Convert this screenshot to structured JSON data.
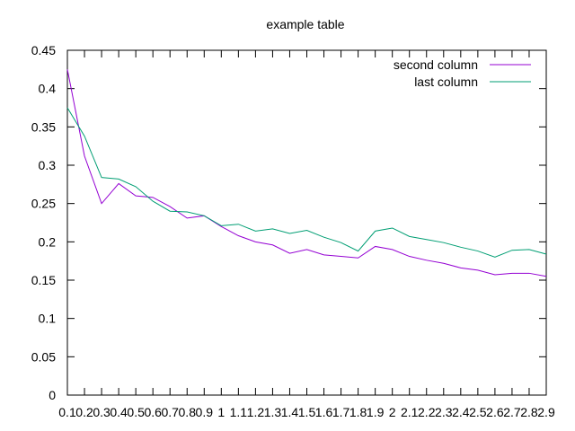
{
  "chart_data": {
    "type": "line",
    "title": "example table",
    "xlabel": "",
    "ylabel": "",
    "x": [
      0.1,
      0.2,
      0.3,
      0.4,
      0.5,
      0.6,
      0.7,
      0.8,
      0.9,
      1,
      1.1,
      1.2,
      1.3,
      1.4,
      1.5,
      1.6,
      1.7,
      1.8,
      1.9,
      2,
      2.1,
      2.2,
      2.3,
      2.4,
      2.5,
      2.6,
      2.7,
      2.8,
      2.9
    ],
    "x_tick_labels": [
      "0.1",
      "0.2",
      "0.3",
      "0.4",
      "0.5",
      "0.6",
      "0.7",
      "0.8",
      "0.9",
      "1",
      "1.1",
      "1.2",
      "1.3",
      "1.4",
      "1.5",
      "1.6",
      "1.7",
      "1.8",
      "1.9",
      "2",
      "2.1",
      "2.2",
      "2.3",
      "2.4",
      "2.5",
      "2.6",
      "2.7",
      "2.8",
      "2.9"
    ],
    "xlim": [
      0.1,
      2.9
    ],
    "ylim": [
      0,
      0.45
    ],
    "y_ticks": [
      0,
      0.05,
      0.1,
      0.15,
      0.2,
      0.25,
      0.3,
      0.35,
      0.4,
      0.45
    ],
    "y_tick_labels": [
      "0",
      "0.05",
      "0.1",
      "0.15",
      "0.2",
      "0.25",
      "0.3",
      "0.35",
      "0.4",
      "0.45"
    ],
    "grid": false,
    "legend": "top-right",
    "series": [
      {
        "name": "second column",
        "color": "#9400d3",
        "values": [
          0.425,
          0.312,
          0.25,
          0.276,
          0.26,
          0.258,
          0.246,
          0.231,
          0.234,
          0.22,
          0.208,
          0.2,
          0.196,
          0.185,
          0.19,
          0.183,
          0.181,
          0.179,
          0.194,
          0.19,
          0.181,
          0.176,
          0.172,
          0.166,
          0.163,
          0.157,
          0.159,
          0.159,
          0.155
        ]
      },
      {
        "name": "last column",
        "color": "#009e73",
        "values": [
          0.375,
          0.338,
          0.284,
          0.282,
          0.272,
          0.253,
          0.24,
          0.239,
          0.234,
          0.221,
          0.223,
          0.214,
          0.217,
          0.211,
          0.215,
          0.206,
          0.199,
          0.188,
          0.214,
          0.218,
          0.207,
          0.203,
          0.199,
          0.193,
          0.188,
          0.18,
          0.189,
          0.19,
          0.184
        ]
      }
    ]
  }
}
